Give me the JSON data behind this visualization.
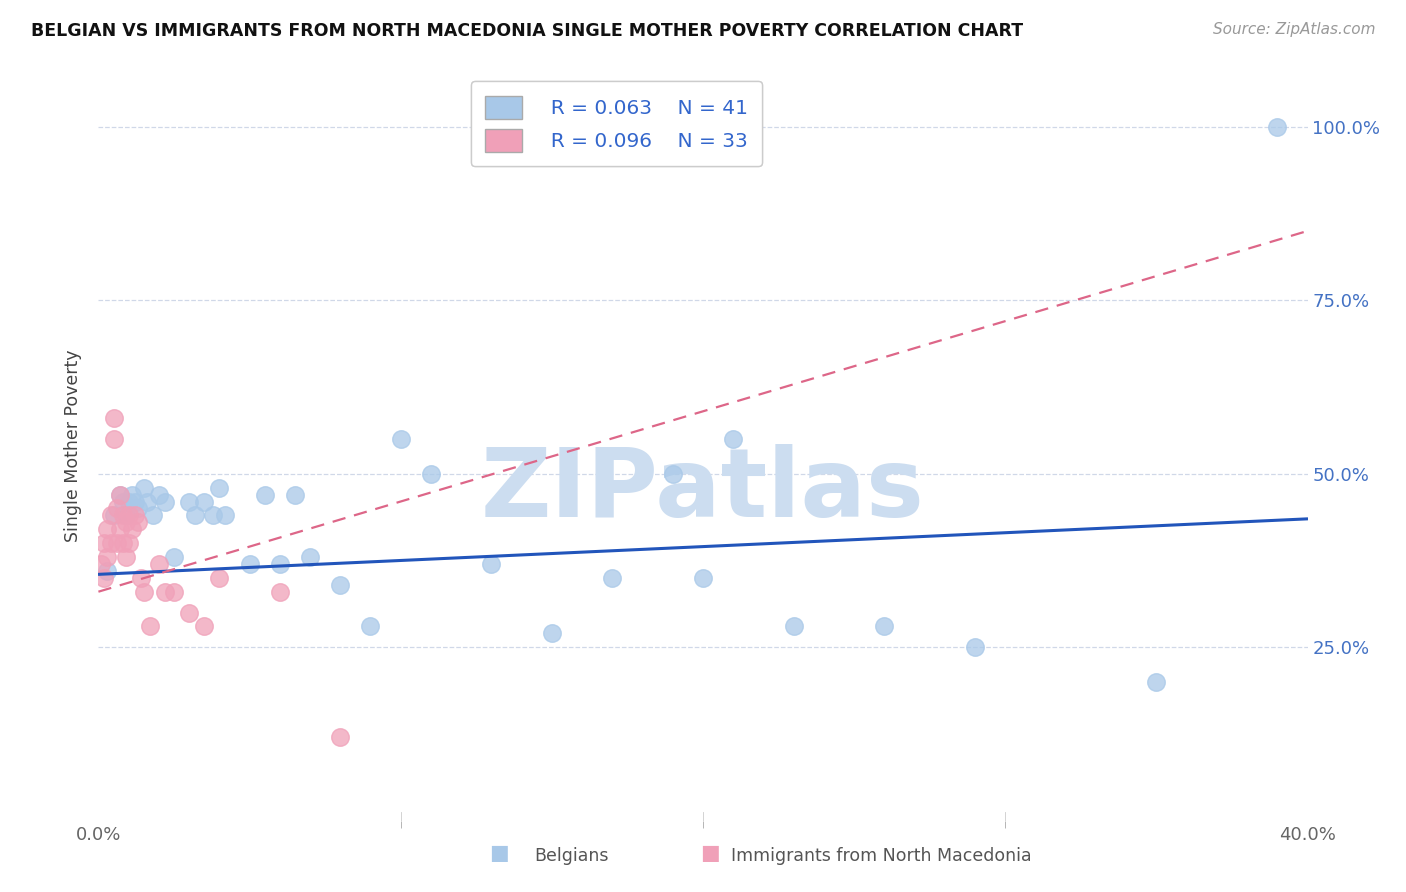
{
  "title": "BELGIAN VS IMMIGRANTS FROM NORTH MACEDONIA SINGLE MOTHER POVERTY CORRELATION CHART",
  "source": "Source: ZipAtlas.com",
  "ylabel": "Single Mother Poverty",
  "ytick_labels": [
    "100.0%",
    "75.0%",
    "50.0%",
    "25.0%"
  ],
  "ytick_values": [
    1.0,
    0.75,
    0.5,
    0.25
  ],
  "xtick_labels": [
    "0.0%",
    "40.0%"
  ],
  "xtick_values": [
    0.0,
    0.4
  ],
  "xlim": [
    0.0,
    0.4
  ],
  "ylim": [
    0.0,
    1.08
  ],
  "legend_r1": "R = 0.063",
  "legend_n1": "N = 41",
  "legend_r2": "R = 0.096",
  "legend_n2": "N = 33",
  "belgian_color": "#a8c8e8",
  "macedonian_color": "#f0a0b8",
  "trendline_belgian_color": "#2255bb",
  "trendline_macedonian_color": "#dd6688",
  "watermark": "ZIPatlas",
  "watermark_color": "#ccddf0",
  "belgians_x": [
    0.003,
    0.005,
    0.007,
    0.008,
    0.009,
    0.01,
    0.011,
    0.012,
    0.013,
    0.015,
    0.016,
    0.018,
    0.02,
    0.022,
    0.025,
    0.03,
    0.032,
    0.035,
    0.038,
    0.04,
    0.042,
    0.05,
    0.055,
    0.06,
    0.065,
    0.07,
    0.08,
    0.09,
    0.1,
    0.11,
    0.13,
    0.15,
    0.17,
    0.19,
    0.2,
    0.21,
    0.23,
    0.26,
    0.29,
    0.35,
    0.39
  ],
  "belgians_y": [
    0.36,
    0.44,
    0.47,
    0.46,
    0.44,
    0.46,
    0.47,
    0.46,
    0.45,
    0.48,
    0.46,
    0.44,
    0.47,
    0.46,
    0.38,
    0.46,
    0.44,
    0.46,
    0.44,
    0.48,
    0.44,
    0.37,
    0.47,
    0.37,
    0.47,
    0.38,
    0.34,
    0.28,
    0.55,
    0.5,
    0.37,
    0.27,
    0.35,
    0.5,
    0.35,
    0.55,
    0.28,
    0.28,
    0.25,
    0.2,
    1.0
  ],
  "macedonian_x": [
    0.001,
    0.002,
    0.002,
    0.003,
    0.003,
    0.004,
    0.004,
    0.005,
    0.005,
    0.006,
    0.006,
    0.007,
    0.007,
    0.008,
    0.008,
    0.009,
    0.009,
    0.01,
    0.01,
    0.011,
    0.012,
    0.013,
    0.014,
    0.015,
    0.017,
    0.02,
    0.022,
    0.025,
    0.03,
    0.035,
    0.04,
    0.06,
    0.08
  ],
  "macedonian_y": [
    0.37,
    0.4,
    0.35,
    0.42,
    0.38,
    0.44,
    0.4,
    0.55,
    0.58,
    0.45,
    0.4,
    0.47,
    0.42,
    0.44,
    0.4,
    0.43,
    0.38,
    0.44,
    0.4,
    0.42,
    0.44,
    0.43,
    0.35,
    0.33,
    0.28,
    0.37,
    0.33,
    0.33,
    0.3,
    0.28,
    0.35,
    0.33,
    0.12
  ],
  "trendline_blue_x0": 0.0,
  "trendline_blue_y0": 0.355,
  "trendline_blue_x1": 0.4,
  "trendline_blue_y1": 0.435,
  "trendline_pink_x0": 0.0,
  "trendline_pink_y0": 0.33,
  "trendline_pink_x1": 0.4,
  "trendline_pink_y1": 0.85,
  "xtick_minor_positions": [
    0.1,
    0.2,
    0.3
  ]
}
